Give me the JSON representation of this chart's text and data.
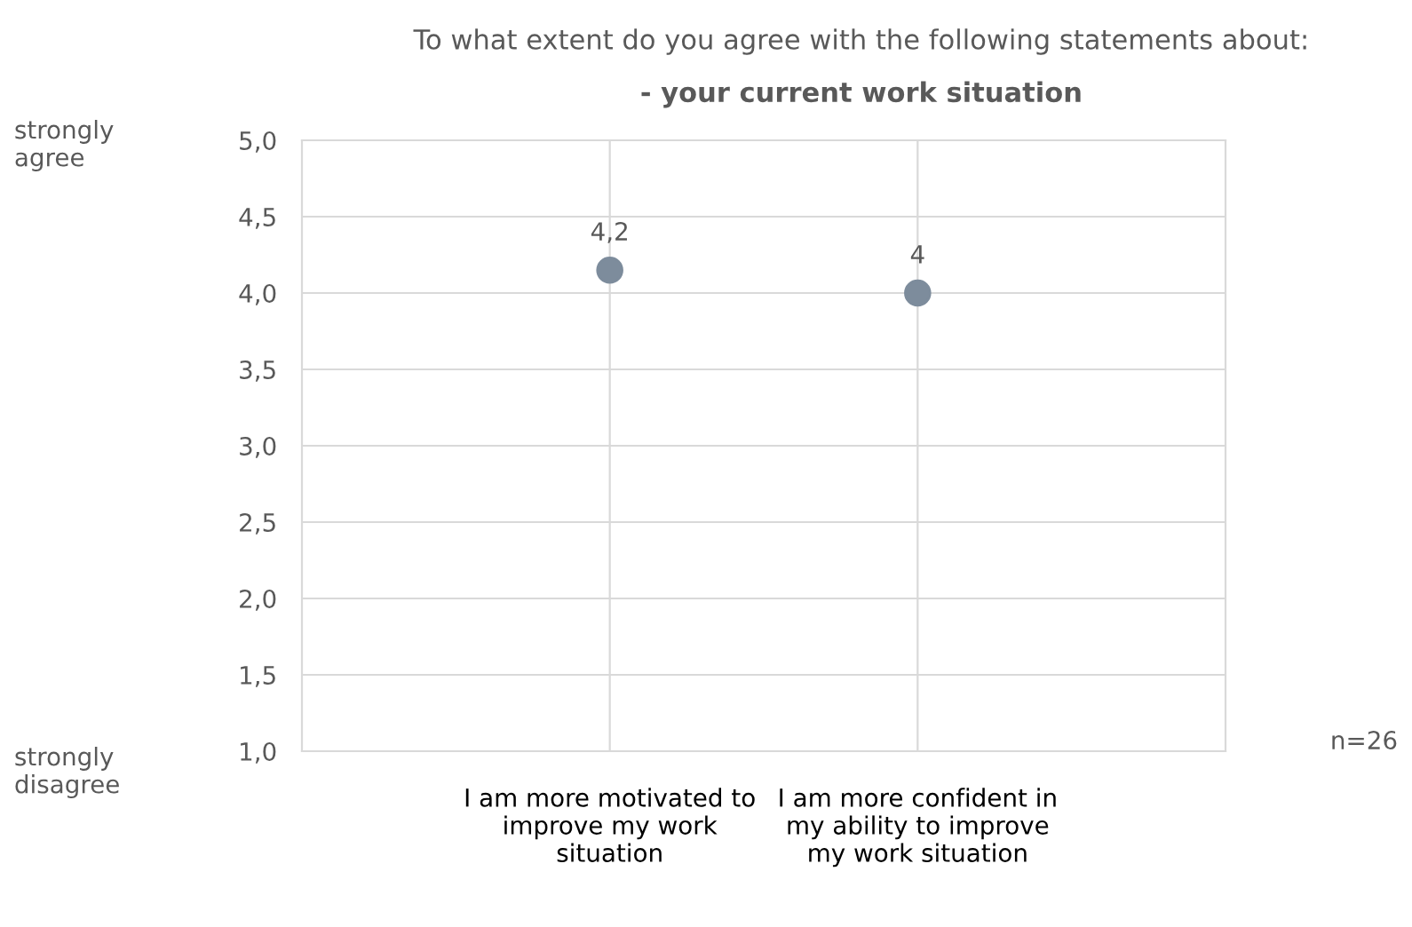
{
  "chart_data": {
    "type": "scatter",
    "title": "To what extent do you agree with the following statements about:",
    "subtitle": "- your current work situation",
    "categories": [
      "I am more motivated to improve my work situation",
      "I am more confident in my ability to improve my work situation"
    ],
    "values": [
      4.15,
      4.0
    ],
    "value_labels": [
      "4,2",
      "4"
    ],
    "color": "#7d8c9c",
    "marker": "circle",
    "ylim": [
      1,
      5
    ],
    "yticks": [
      {
        "value": 1,
        "label": "1,0"
      },
      {
        "value": 1.5,
        "label": "1,5"
      },
      {
        "value": 2,
        "label": "2,0"
      },
      {
        "value": 2.5,
        "label": "2,5"
      },
      {
        "value": 3,
        "label": "3,0"
      },
      {
        "value": 3.5,
        "label": "3,5"
      },
      {
        "value": 4,
        "label": "4,0"
      },
      {
        "value": 4.5,
        "label": "4,5"
      },
      {
        "value": 5,
        "label": "5,0"
      }
    ],
    "grid": true,
    "legend": false,
    "annotations": [
      "strongly agree",
      "strongly disagree",
      "n=26"
    ]
  }
}
